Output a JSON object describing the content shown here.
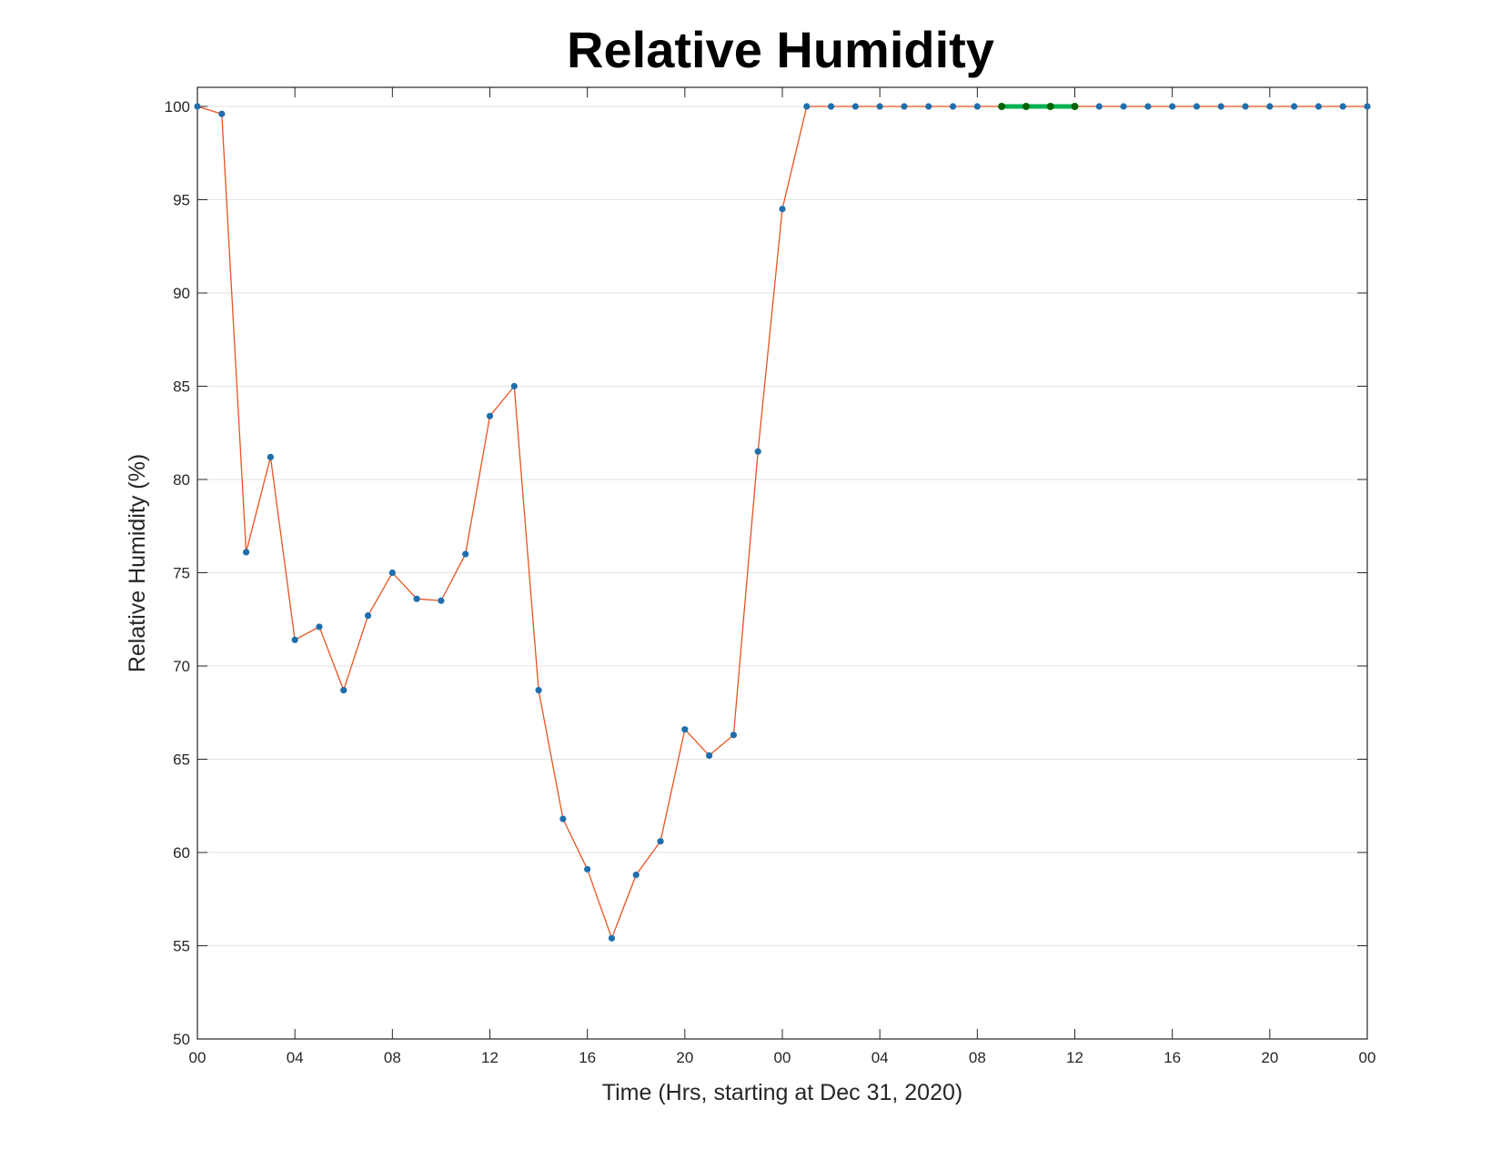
{
  "chart_data": {
    "type": "line",
    "title": "Relative Humidity",
    "xlabel": "Time (Hrs, starting at Dec 31, 2020)",
    "ylabel": "Relative Humidity (%)",
    "ylim": [
      50,
      100
    ],
    "yticks": [
      "50",
      "55",
      "60",
      "65",
      "70",
      "75",
      "80",
      "85",
      "90",
      "95",
      "100"
    ],
    "xlim_hours": [
      0,
      48
    ],
    "xticks": [
      {
        "hour": 0,
        "label": "00"
      },
      {
        "hour": 4,
        "label": "04"
      },
      {
        "hour": 8,
        "label": "08"
      },
      {
        "hour": 12,
        "label": "12"
      },
      {
        "hour": 16,
        "label": "16"
      },
      {
        "hour": 20,
        "label": "20"
      },
      {
        "hour": 24,
        "label": "00"
      },
      {
        "hour": 28,
        "label": "04"
      },
      {
        "hour": 32,
        "label": "08"
      },
      {
        "hour": 36,
        "label": "12"
      },
      {
        "hour": 40,
        "label": "16"
      },
      {
        "hour": 44,
        "label": "20"
      },
      {
        "hour": 48,
        "label": "00"
      }
    ],
    "grid": "horizontal",
    "series": [
      {
        "color": "#e8531f",
        "marker_color": "#1f6fae",
        "x_hours": [
          0,
          1,
          2,
          3,
          4,
          5,
          6,
          7,
          8,
          9,
          10,
          11,
          12,
          13,
          14,
          15,
          16,
          17,
          18,
          19,
          20,
          21,
          22,
          23,
          24,
          25,
          26,
          27,
          28,
          29,
          30,
          31,
          32,
          33,
          34,
          35,
          36,
          37,
          38,
          39,
          40,
          41,
          42,
          43,
          44,
          45,
          46,
          47,
          48
        ],
        "values": [
          100,
          99.6,
          76.1,
          81.2,
          71.4,
          72.1,
          68.7,
          72.7,
          75.0,
          73.6,
          73.5,
          76.0,
          83.4,
          85.0,
          68.7,
          61.8,
          59.1,
          55.4,
          58.8,
          60.6,
          66.6,
          65.2,
          66.3,
          81.5,
          94.5,
          100,
          100,
          100,
          100,
          100,
          100,
          100,
          100,
          100,
          100,
          100,
          100,
          100,
          100,
          100,
          100,
          100,
          100,
          100,
          100,
          100,
          100,
          100,
          100
        ]
      }
    ],
    "highlight": {
      "color": "#00b050",
      "marker_color": "#006400",
      "x_hours": [
        33,
        34,
        35,
        36
      ],
      "values": [
        100,
        100,
        100,
        100
      ]
    }
  }
}
